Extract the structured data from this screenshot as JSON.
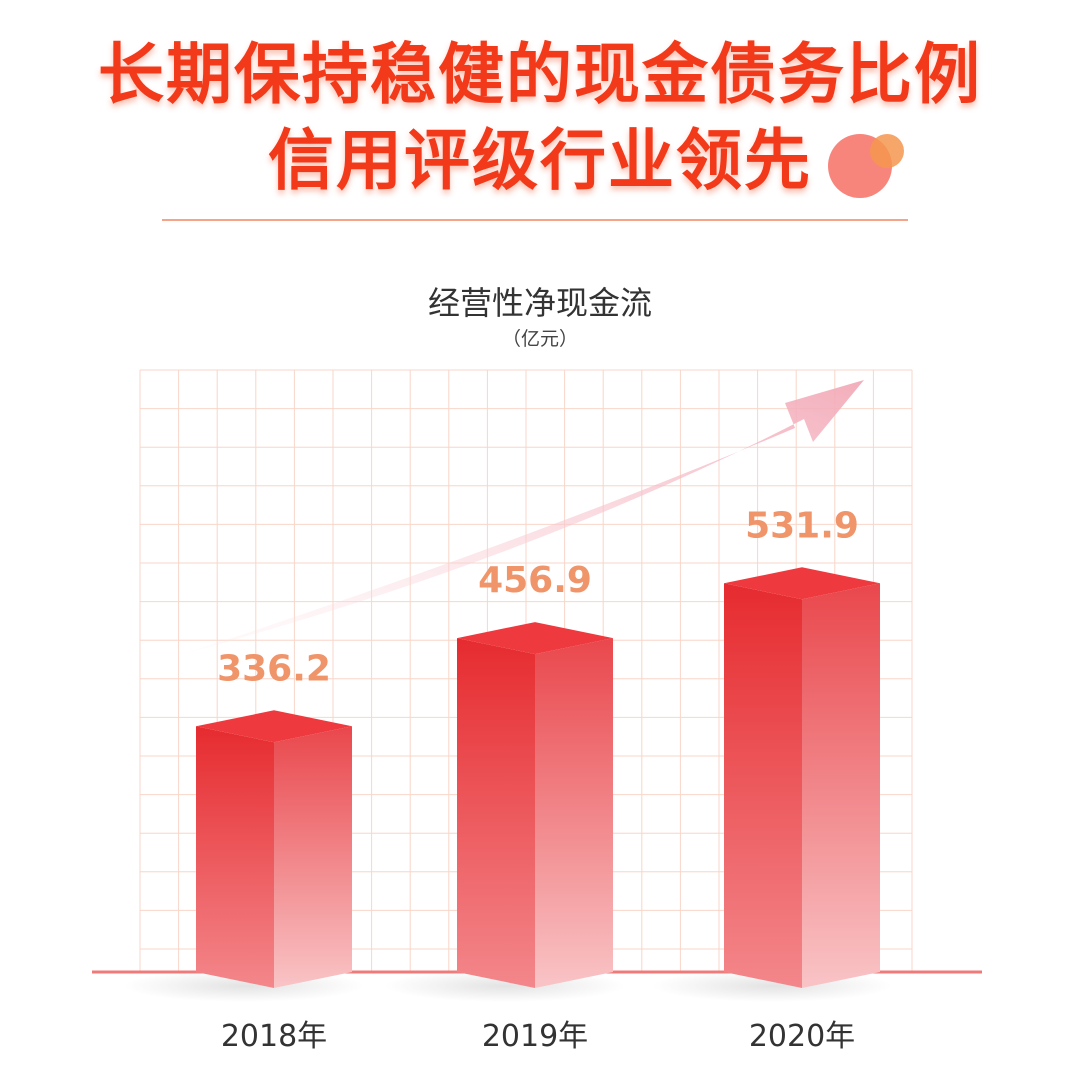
{
  "headline": {
    "line1": "长期保持稳健的现金债务比例",
    "line2": "信用评级行业领先"
  },
  "colors": {
    "headline": "#f23a1b",
    "bar_front_top": "#e62b2f",
    "bar_front_bottom": "#f7a0a3",
    "bar_top_face": "#ee3a3e",
    "value_label": "#f0946a",
    "grid": "#f8d6c8",
    "baseline": "#f07a78"
  },
  "chart_data": {
    "type": "bar",
    "title": "经营性净现金流",
    "unit": "（亿元）",
    "categories": [
      "2018年",
      "2019年",
      "2020年"
    ],
    "values": [
      336.2,
      456.9,
      531.9
    ],
    "value_labels": [
      "336.2",
      "456.9",
      "531.9"
    ],
    "ylim": [
      0,
      700
    ],
    "grid": true,
    "trend_arrow": true
  }
}
